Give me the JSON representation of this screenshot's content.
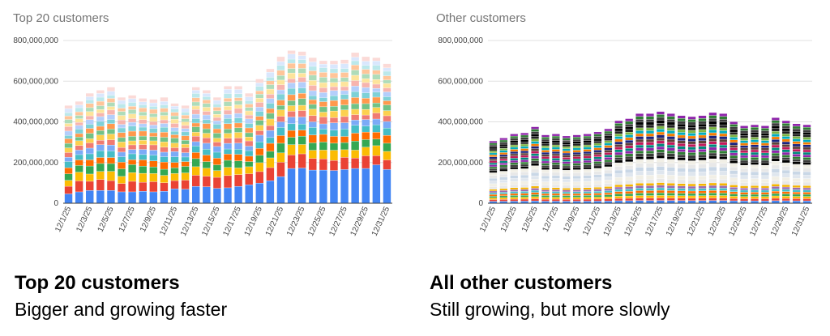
{
  "chart_data": [
    {
      "type": "bar",
      "stacked": true,
      "title": "Top 20 customers",
      "x": [
        "12/1/25",
        "12/2/25",
        "12/3/25",
        "12/4/25",
        "12/5/25",
        "12/6/25",
        "12/7/25",
        "12/8/25",
        "12/9/25",
        "12/10/25",
        "12/11/25",
        "12/12/25",
        "12/13/25",
        "12/14/25",
        "12/15/25",
        "12/16/25",
        "12/17/25",
        "12/18/25",
        "12/19/25",
        "12/20/25",
        "12/21/25",
        "12/22/25",
        "12/23/25",
        "12/24/25",
        "12/25/25",
        "12/26/25",
        "12/27/25",
        "12/28/25",
        "12/29/25",
        "12/30/25",
        "12/31/25"
      ],
      "tick_labels": [
        "12/1/25",
        "12/3/25",
        "12/5/25",
        "12/7/25",
        "12/9/25",
        "12/11/25",
        "12/13/25",
        "12/15/25",
        "12/17/25",
        "12/19/25",
        "12/21/25",
        "12/23/25",
        "12/25/25",
        "12/27/25",
        "12/29/25",
        "12/31/25"
      ],
      "totals": [
        480000000,
        500000000,
        540000000,
        555000000,
        570000000,
        520000000,
        530000000,
        515000000,
        510000000,
        520000000,
        490000000,
        480000000,
        570000000,
        555000000,
        520000000,
        575000000,
        575000000,
        540000000,
        610000000,
        660000000,
        720000000,
        750000000,
        745000000,
        715000000,
        700000000,
        700000000,
        705000000,
        740000000,
        720000000,
        715000000,
        685000000
      ],
      "largest_series": [
        45000000,
        55000000,
        62000000,
        62000000,
        62000000,
        55000000,
        55000000,
        58000000,
        55000000,
        58000000,
        70000000,
        68000000,
        82000000,
        80000000,
        72000000,
        75000000,
        82000000,
        90000000,
        98000000,
        110000000,
        130000000,
        170000000,
        172000000,
        162000000,
        162000000,
        160000000,
        165000000,
        170000000,
        170000000,
        188000000,
        165000000
      ],
      "ylim": [
        0,
        800000000
      ],
      "yticks": [
        "0",
        "200,000,000",
        "400,000,000",
        "600,000,000",
        "800,000,000"
      ],
      "colors": [
        "#4285f4",
        "#ea4335",
        "#fbbc04",
        "#34a853",
        "#ff6d01",
        "#46bdc6",
        "#7baaf7",
        "#f07b72",
        "#fcd04f",
        "#71c287",
        "#ff994d",
        "#7ed1d7",
        "#b3cefb",
        "#f7b4ae",
        "#fde49b",
        "#aedcba",
        "#ffc599",
        "#bbe8eb",
        "#d9e7fd",
        "#fbdad7"
      ],
      "grid": true
    },
    {
      "type": "bar",
      "stacked": true,
      "title": "Other customers",
      "x": [
        "12/1/25",
        "12/2/25",
        "12/3/25",
        "12/4/25",
        "12/5/25",
        "12/6/25",
        "12/7/25",
        "12/8/25",
        "12/9/25",
        "12/10/25",
        "12/11/25",
        "12/12/25",
        "12/13/25",
        "12/14/25",
        "12/15/25",
        "12/16/25",
        "12/17/25",
        "12/18/25",
        "12/19/25",
        "12/20/25",
        "12/21/25",
        "12/22/25",
        "12/23/25",
        "12/24/25",
        "12/25/25",
        "12/26/25",
        "12/27/25",
        "12/28/25",
        "12/29/25",
        "12/30/25",
        "12/31/25"
      ],
      "tick_labels": [
        "12/1/25",
        "12/3/25",
        "12/5/25",
        "12/7/25",
        "12/9/25",
        "12/11/25",
        "12/13/25",
        "12/15/25",
        "12/17/25",
        "12/19/25",
        "12/21/25",
        "12/23/25",
        "12/25/25",
        "12/27/25",
        "12/29/25",
        "12/31/25"
      ],
      "totals": [
        305000000,
        320000000,
        340000000,
        345000000,
        375000000,
        335000000,
        340000000,
        330000000,
        335000000,
        340000000,
        350000000,
        365000000,
        405000000,
        415000000,
        440000000,
        440000000,
        450000000,
        440000000,
        430000000,
        425000000,
        430000000,
        445000000,
        440000000,
        400000000,
        380000000,
        385000000,
        380000000,
        420000000,
        405000000,
        390000000,
        385000000
      ],
      "ylim": [
        0,
        800000000
      ],
      "yticks": [
        "0",
        "200,000,000",
        "400,000,000",
        "600,000,000",
        "800,000,000"
      ],
      "colors": [
        "#4285f4",
        "#ea4335",
        "#fbbc04",
        "#34a853",
        "#ff6d01",
        "#46bdc6",
        "#9e69af",
        "#f4b400",
        "#0f9d58",
        "#db4437",
        "#e8e8e8",
        "#f1efe6",
        "#dfe6ee",
        "#c9d7e6",
        "#000000",
        "#3c3c3c",
        "#2e7d32",
        "#8e24aa",
        "#00897b",
        "#c2185b",
        "#5d4037",
        "#1a237e",
        "#f57c00",
        "#00acc1",
        "#7cb342",
        "#212121"
      ],
      "grid": true
    }
  ],
  "captions": {
    "left_title": "Top 20 customers",
    "left_subtitle": "Bigger and growing faster",
    "right_title": "All other customers",
    "right_subtitle": "Still growing, but more slowly"
  }
}
